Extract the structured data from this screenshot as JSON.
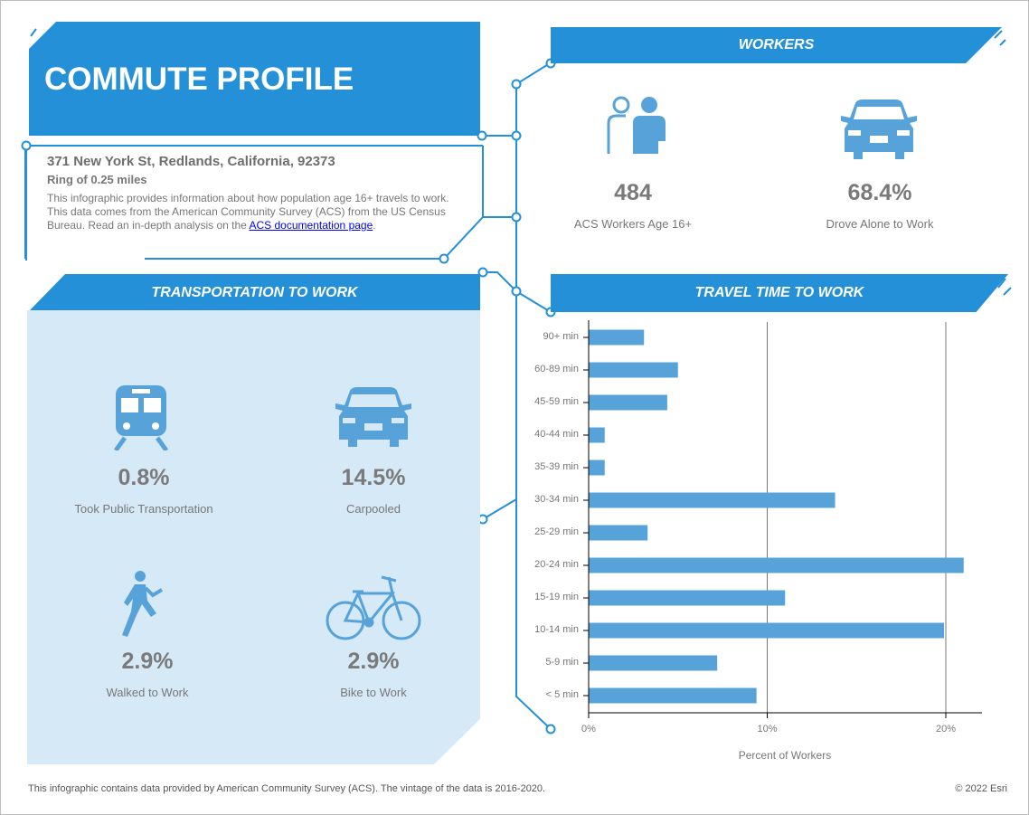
{
  "title": "COMMUTE PROFILE",
  "address": "371 New York St, Redlands, California, 92373",
  "ring": "Ring of 0.25 miles",
  "description": "This infographic provides information about how population age 16+ travels to work. This data comes from the American Community Survey (ACS) from the US Census Bureau. Read an in-depth analysis on the ",
  "link_text": "ACS documentation page",
  "description_end": ".",
  "workers": {
    "header": "WORKERS",
    "stats": [
      {
        "icon": "people-icon",
        "value": "484",
        "label": "ACS Workers Age 16+"
      },
      {
        "icon": "car-icon",
        "value": "68.4%",
        "label": "Drove Alone to Work"
      }
    ]
  },
  "transport": {
    "header": "TRANSPORTATION TO WORK",
    "stats": [
      {
        "icon": "train-icon",
        "value": "0.8%",
        "label": "Took Public Transportation"
      },
      {
        "icon": "car-icon",
        "value": "14.5%",
        "label": "Carpooled"
      },
      {
        "icon": "walker-icon",
        "value": "2.9%",
        "label": "Walked to Work"
      },
      {
        "icon": "bicycle-icon",
        "value": "2.9%",
        "label": "Bike to Work"
      }
    ]
  },
  "travel": {
    "header": "TRAVEL TIME TO WORK"
  },
  "chart_data": {
    "type": "bar",
    "orientation": "horizontal",
    "categories": [
      "90+ min",
      "60-89 min",
      "45-59 min",
      "40-44 min",
      "35-39 min",
      "30-34 min",
      "25-29 min",
      "20-24 min",
      "15-19 min",
      "10-14 min",
      "5-9 min",
      "< 5 min"
    ],
    "values": [
      3.1,
      5.0,
      4.4,
      0.9,
      0.9,
      13.8,
      3.3,
      21.0,
      11.0,
      19.9,
      7.2,
      9.4
    ],
    "xlabel": "Percent of Workers",
    "xticks": [
      "0%",
      "10%",
      "20%"
    ],
    "xlim": [
      0,
      22
    ],
    "grid": true,
    "color": "#57a3d9"
  },
  "footer": {
    "left": "This infographic contains data provided by American Community Survey (ACS). The vintage of the data is 2016-2020.",
    "right": "© 2022 Esri"
  },
  "colors": {
    "accent": "#2490d8",
    "panel": "#d6e9f7",
    "icon": "#57a3d9"
  }
}
